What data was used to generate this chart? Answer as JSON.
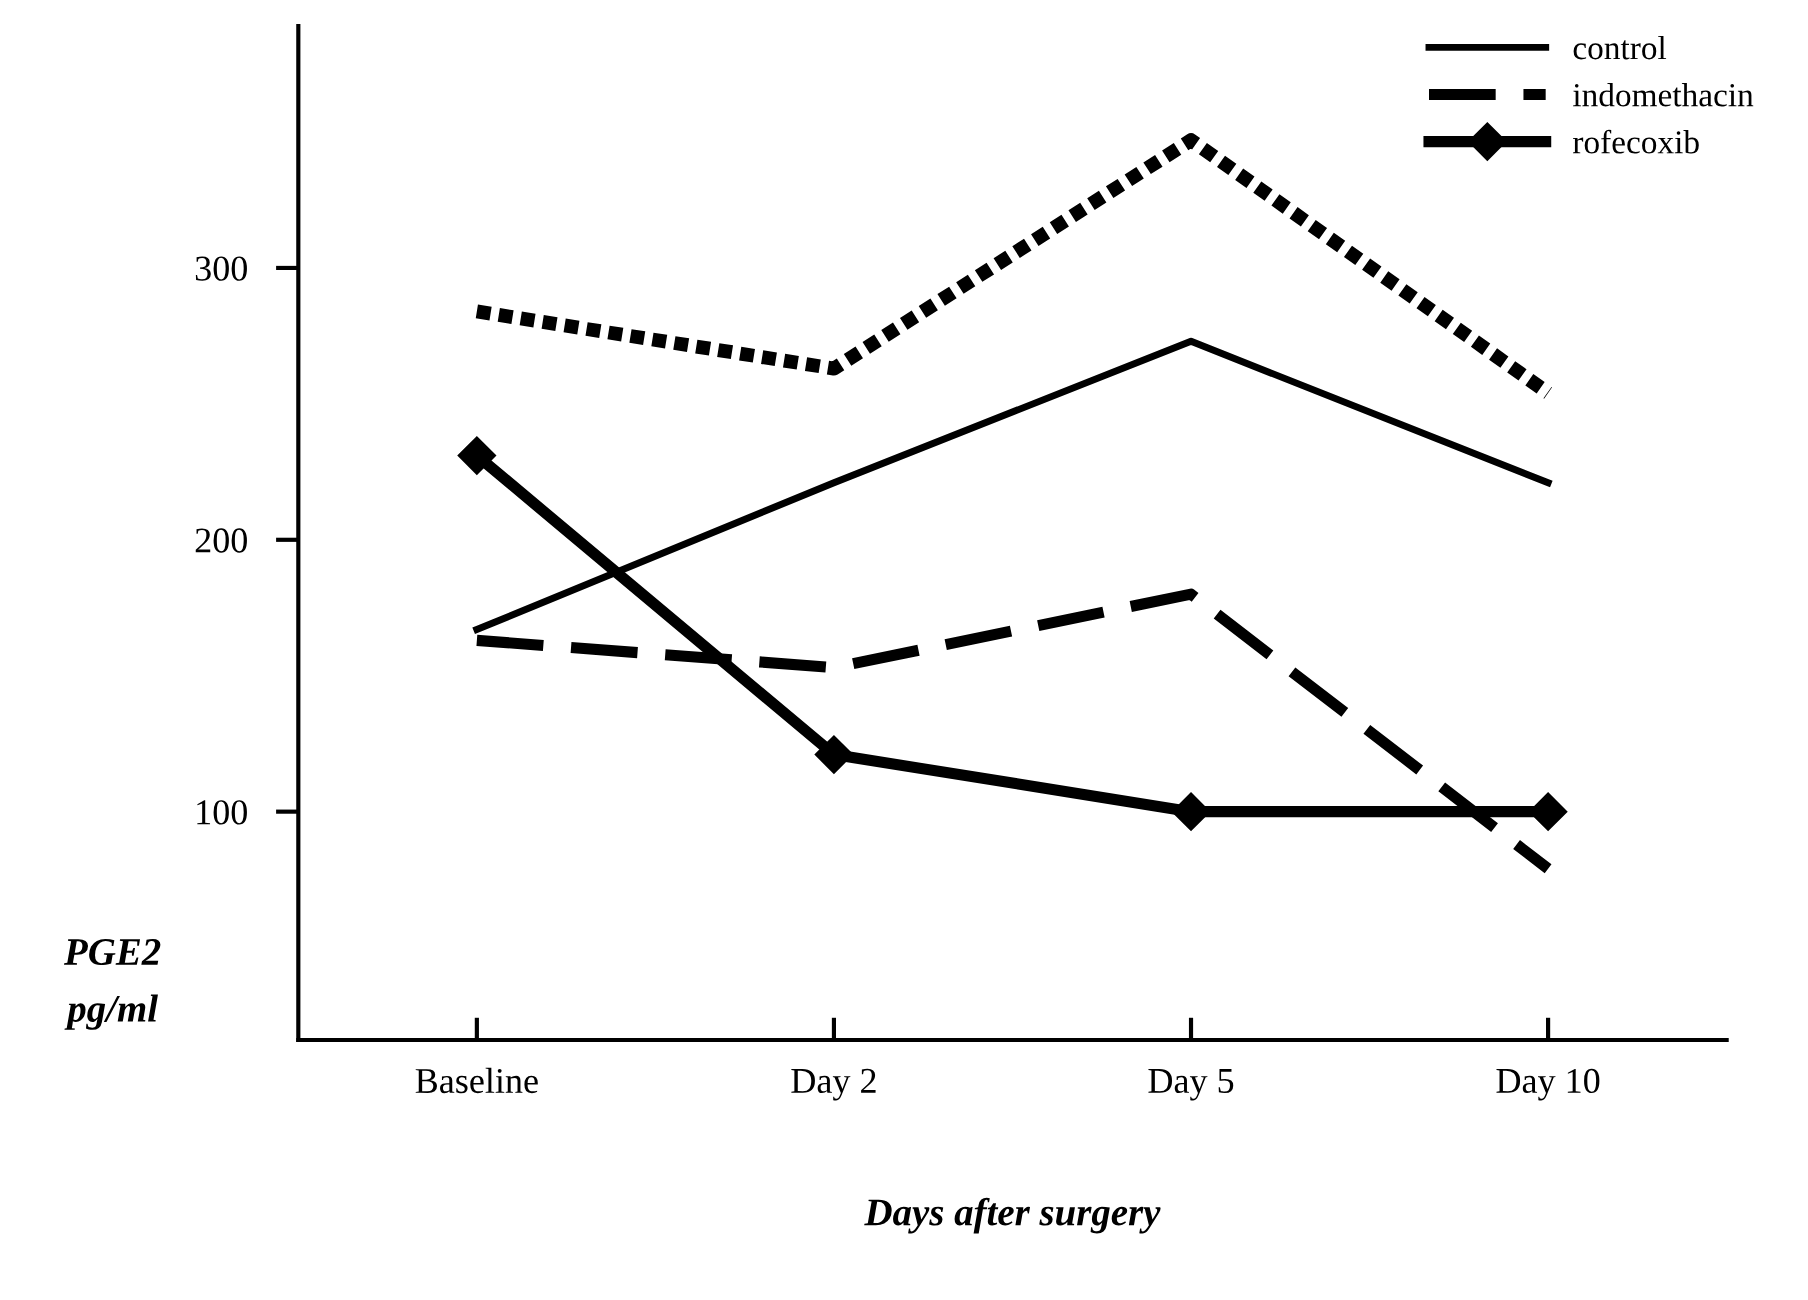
{
  "chart_data": {
    "type": "line",
    "xlabel": "Days after surgery",
    "ylabel": "PGE2\npg/ml",
    "categories": [
      "Baseline",
      "Day 2",
      "Day 5",
      "Day 10"
    ],
    "ylim": [
      16,
      389
    ],
    "yticks": [
      100,
      200,
      300
    ],
    "grid": false,
    "legend": "top right",
    "series": [
      {
        "name": "control",
        "color": "#000000",
        "values": [
          167,
          221,
          273,
          221
        ],
        "line_style": "solid",
        "marker": "none"
      },
      {
        "name": "indomethacin",
        "color": "#000000",
        "values": [
          163,
          153,
          180,
          79
        ],
        "line_style": "dashed",
        "marker": "none"
      },
      {
        "name": "rofecoxib",
        "color": "#000000",
        "values": [
          231,
          121,
          100,
          100
        ],
        "line_style": "solid",
        "marker": "diamond"
      },
      {
        "color": "#000000",
        "values": [
          284,
          263,
          347,
          254
        ],
        "line_style": "dotted",
        "marker": "none"
      }
    ]
  }
}
